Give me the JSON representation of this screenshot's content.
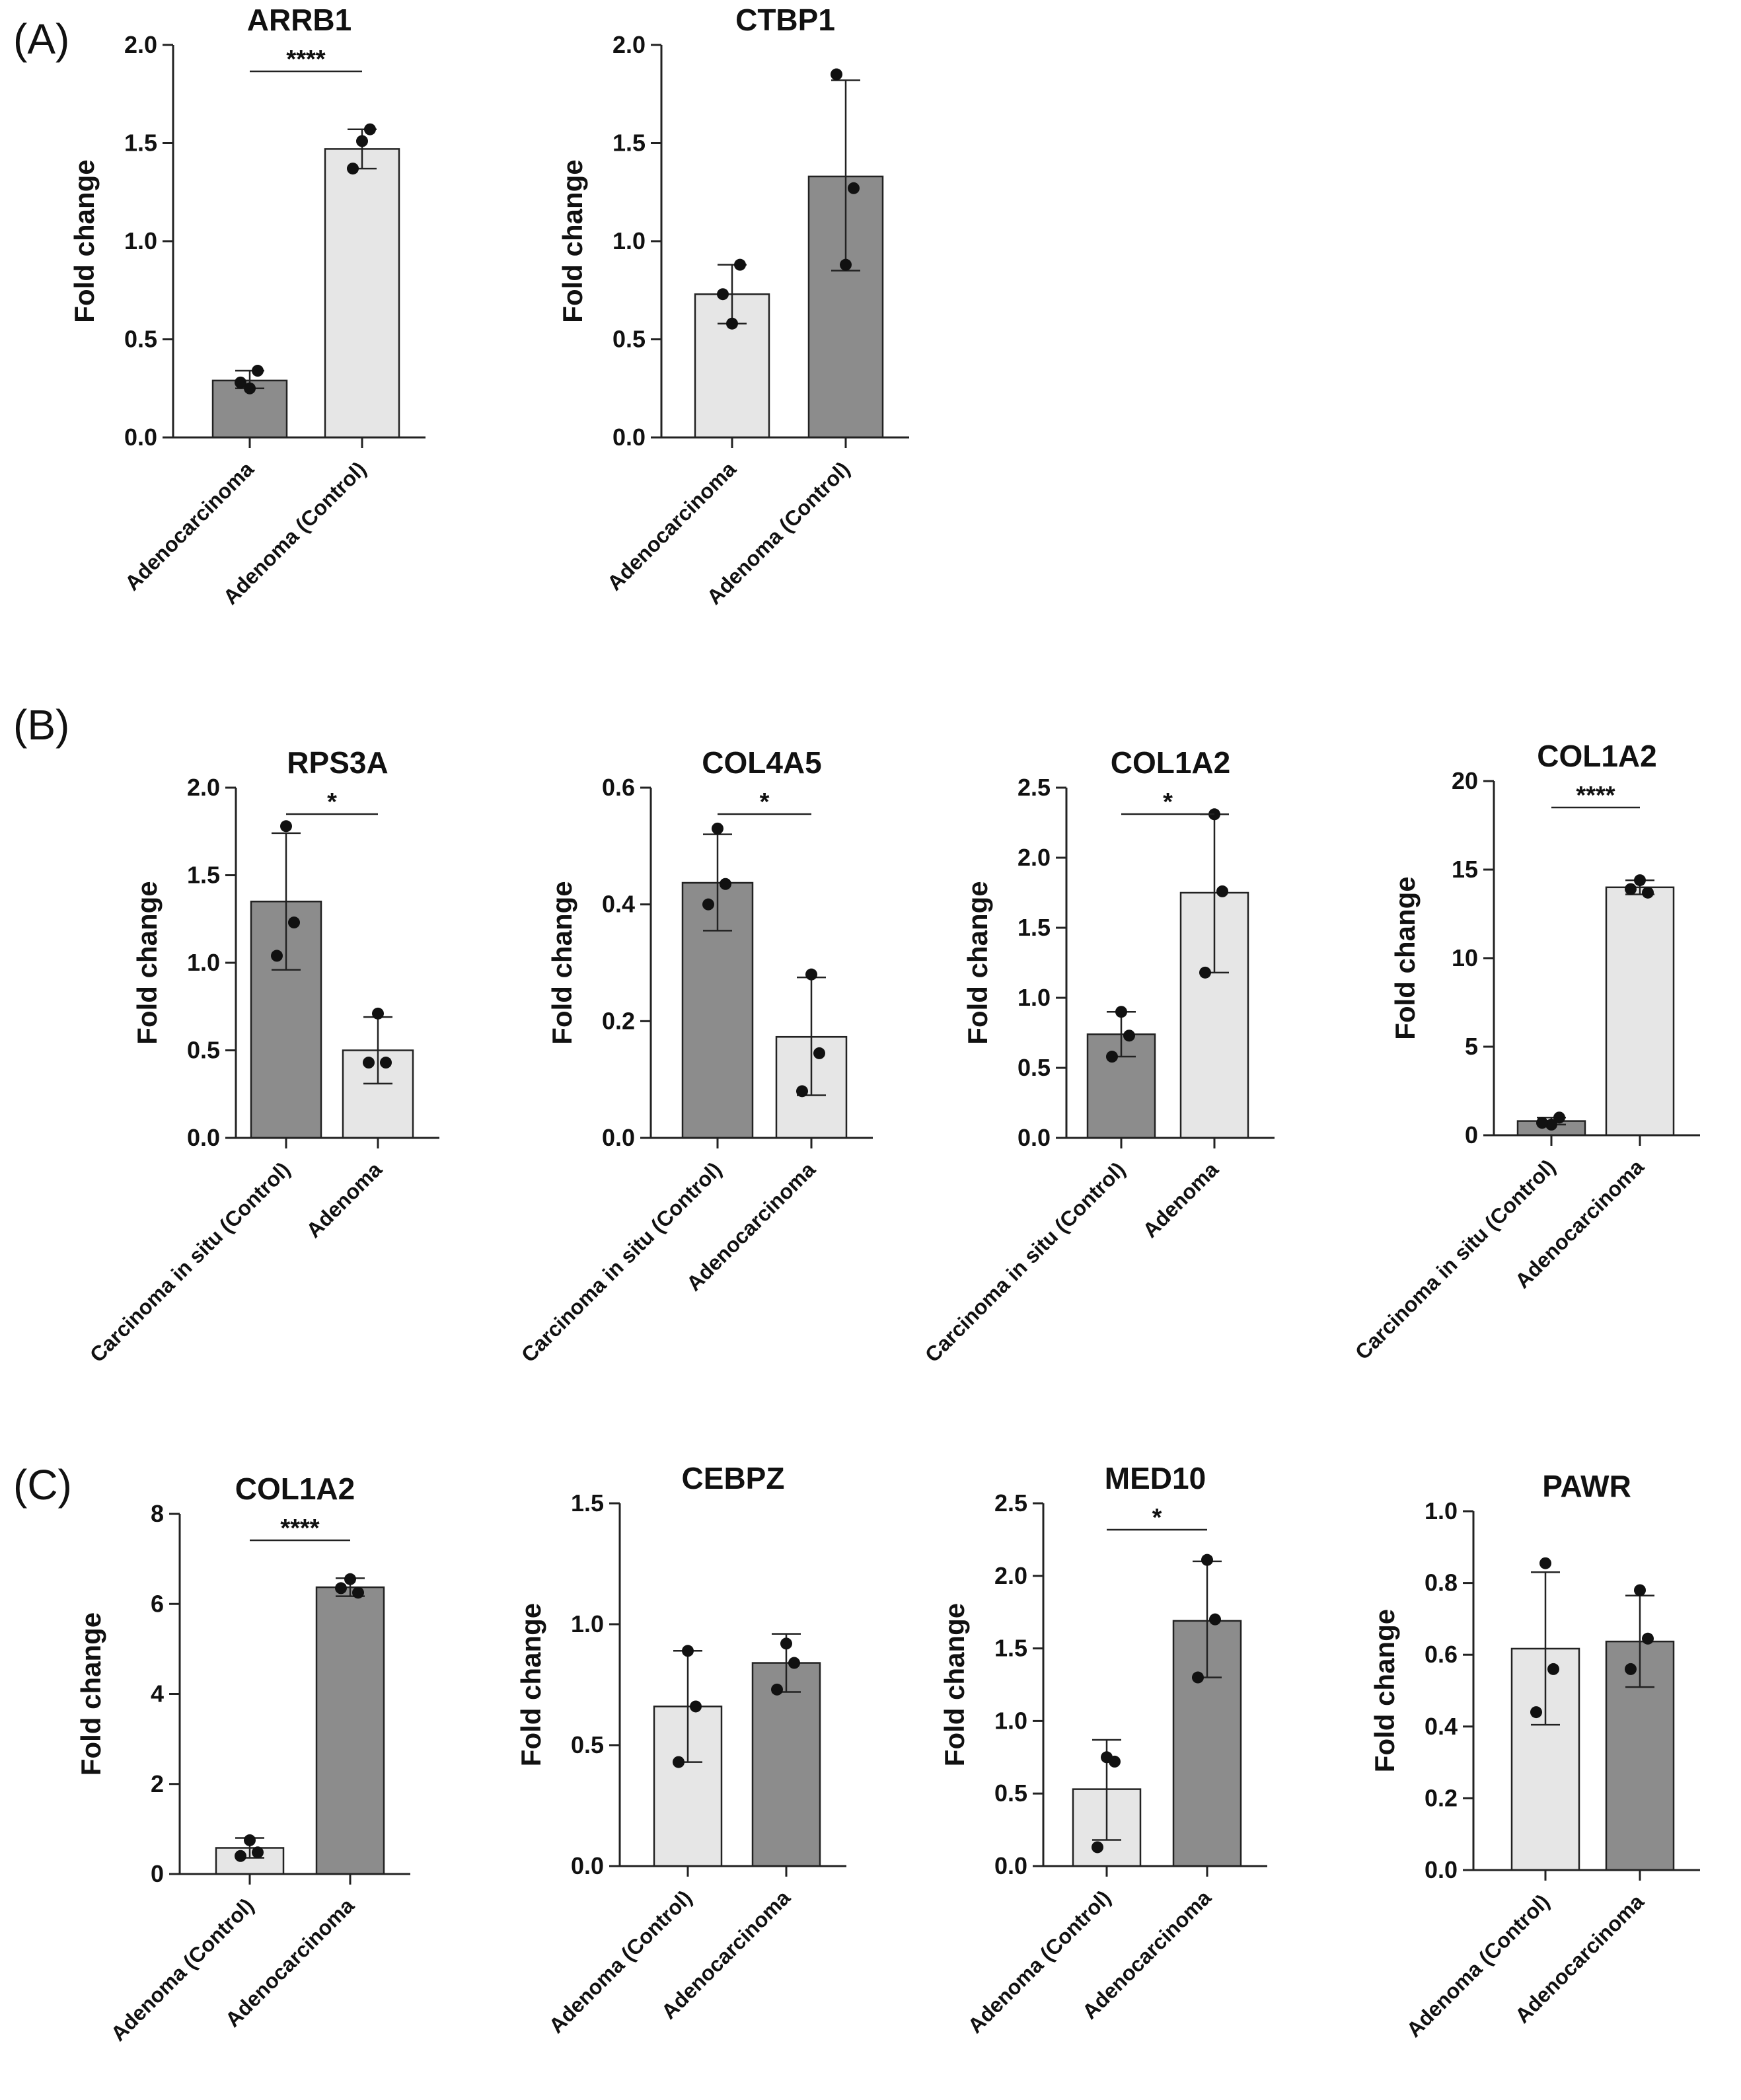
{
  "panel_labels": [
    "(A)",
    "(B)",
    "(C)"
  ],
  "chart_data": [
    {
      "type": "bar",
      "panel": "A",
      "title": "ARRB1",
      "ylabel": "Fold change",
      "ylim": [
        0,
        2.0
      ],
      "yticks": [
        "0.0",
        "0.5",
        "1.0",
        "1.5",
        "2.0"
      ],
      "categories": [
        "Adenocarcinoma",
        "Adenoma (Control)"
      ],
      "values": [
        0.29,
        1.47
      ],
      "err": [
        [
          0.25,
          0.34
        ],
        [
          1.37,
          1.57
        ]
      ],
      "points": [
        [
          0.25,
          0.34,
          0.28
        ],
        [
          1.51,
          1.57,
          1.37
        ]
      ],
      "colors": [
        "#8c8c8c",
        "#e6e6e6"
      ],
      "sig": "****"
    },
    {
      "type": "bar",
      "panel": "A",
      "title": "CTBP1",
      "ylabel": "Fold change",
      "ylim": [
        0,
        2.0
      ],
      "yticks": [
        "0.0",
        "0.5",
        "1.0",
        "1.5",
        "2.0"
      ],
      "categories": [
        "Adenocarcinoma",
        "Adenoma (Control)"
      ],
      "values": [
        0.73,
        1.33
      ],
      "err": [
        [
          0.58,
          0.88
        ],
        [
          0.85,
          1.82
        ]
      ],
      "points": [
        [
          0.58,
          0.88,
          0.73
        ],
        [
          0.88,
          1.27,
          1.85
        ]
      ],
      "colors": [
        "#e6e6e6",
        "#8c8c8c"
      ],
      "sig": ""
    },
    {
      "type": "bar",
      "panel": "B",
      "title": "RPS3A",
      "ylabel": "Fold change",
      "ylim": [
        0,
        2.0
      ],
      "yticks": [
        "0.0",
        "0.5",
        "1.0",
        "1.5",
        "2.0"
      ],
      "categories": [
        "Carcinoma in situ (Control)",
        "Adenoma"
      ],
      "values": [
        1.35,
        0.5
      ],
      "err": [
        [
          0.96,
          1.74
        ],
        [
          0.31,
          0.69
        ]
      ],
      "points": [
        [
          1.78,
          1.23,
          1.04
        ],
        [
          0.71,
          0.43,
          0.43
        ]
      ],
      "colors": [
        "#8c8c8c",
        "#e6e6e6"
      ],
      "sig": "*"
    },
    {
      "type": "bar",
      "panel": "B",
      "title": "COL4A5",
      "ylabel": "Fold change",
      "ylim": [
        0,
        0.6
      ],
      "yticks": [
        "0.0",
        "0.2",
        "0.4",
        "0.6"
      ],
      "categories": [
        "Carcinoma in situ (Control)",
        "Adenocarcinoma"
      ],
      "values": [
        0.437,
        0.173
      ],
      "err": [
        [
          0.355,
          0.52
        ],
        [
          0.073,
          0.275
        ]
      ],
      "points": [
        [
          0.53,
          0.435,
          0.4
        ],
        [
          0.28,
          0.145,
          0.08
        ]
      ],
      "colors": [
        "#8c8c8c",
        "#e6e6e6"
      ],
      "sig": "*"
    },
    {
      "type": "bar",
      "panel": "B",
      "title": "COL1A2",
      "ylabel": "Fold change",
      "ylim": [
        0,
        2.5
      ],
      "yticks": [
        "0.0",
        "0.5",
        "1.0",
        "1.5",
        "2.0",
        "2.5"
      ],
      "categories": [
        "Carcinoma in situ (Control)",
        "Adenoma"
      ],
      "values": [
        0.74,
        1.75
      ],
      "err": [
        [
          0.58,
          0.9
        ],
        [
          1.18,
          2.31
        ]
      ],
      "points": [
        [
          0.9,
          0.73,
          0.58
        ],
        [
          2.31,
          1.76,
          1.18
        ]
      ],
      "colors": [
        "#8c8c8c",
        "#e6e6e6"
      ],
      "sig": "*"
    },
    {
      "type": "bar",
      "panel": "B",
      "title": "COL1A2",
      "ylabel": "Fold change",
      "ylim": [
        0,
        20
      ],
      "yticks": [
        "0",
        "5",
        "10",
        "15",
        "20"
      ],
      "categories": [
        "Carcinoma in situ (Control)",
        "Adenocarcinoma"
      ],
      "values": [
        0.8,
        14.0
      ],
      "err": [
        [
          0.6,
          1.0
        ],
        [
          13.6,
          14.4
        ]
      ],
      "points": [
        [
          0.6,
          1.0,
          0.7
        ],
        [
          14.4,
          13.7,
          13.9
        ]
      ],
      "colors": [
        "#8c8c8c",
        "#e6e6e6"
      ],
      "sig": "****"
    },
    {
      "type": "bar",
      "panel": "C",
      "title": "COL1A2",
      "ylabel": "Fold change",
      "ylim": [
        0,
        8
      ],
      "yticks": [
        "0",
        "2",
        "4",
        "6",
        "8"
      ],
      "categories": [
        "Adenoma (Control)",
        "Adenocarcinoma"
      ],
      "values": [
        0.58,
        6.37
      ],
      "err": [
        [
          0.36,
          0.8
        ],
        [
          6.17,
          6.57
        ]
      ],
      "points": [
        [
          0.75,
          0.48,
          0.4
        ],
        [
          6.55,
          6.25,
          6.35
        ]
      ],
      "colors": [
        "#e6e6e6",
        "#8c8c8c"
      ],
      "sig": "****"
    },
    {
      "type": "bar",
      "panel": "C",
      "title": "CEBPZ",
      "ylabel": "Fold change",
      "ylim": [
        0,
        1.5
      ],
      "yticks": [
        "0.0",
        "0.5",
        "1.0",
        "1.5"
      ],
      "categories": [
        "Adenoma (Control)",
        "Adenocarcinoma"
      ],
      "values": [
        0.66,
        0.84
      ],
      "err": [
        [
          0.43,
          0.89
        ],
        [
          0.72,
          0.96
        ]
      ],
      "points": [
        [
          0.89,
          0.66,
          0.43
        ],
        [
          0.92,
          0.84,
          0.73
        ]
      ],
      "colors": [
        "#e6e6e6",
        "#8c8c8c"
      ],
      "sig": ""
    },
    {
      "type": "bar",
      "panel": "C",
      "title": "MED10",
      "ylabel": "Fold change",
      "ylim": [
        0,
        2.5
      ],
      "yticks": [
        "0.0",
        "0.5",
        "1.0",
        "1.5",
        "2.0",
        "2.5"
      ],
      "categories": [
        "Adenoma (Control)",
        "Adenocarcinoma"
      ],
      "values": [
        0.53,
        1.69
      ],
      "err": [
        [
          0.18,
          0.87
        ],
        [
          1.3,
          2.1
        ]
      ],
      "points": [
        [
          0.75,
          0.72,
          0.13
        ],
        [
          2.11,
          1.7,
          1.3
        ]
      ],
      "colors": [
        "#e6e6e6",
        "#8c8c8c"
      ],
      "sig": "*"
    },
    {
      "type": "bar",
      "panel": "C",
      "title": "PAWR",
      "ylabel": "Fold change",
      "ylim": [
        0,
        1.0
      ],
      "yticks": [
        "0.0",
        "0.2",
        "0.4",
        "0.6",
        "0.8",
        "1.0"
      ],
      "categories": [
        "Adenoma (Control)",
        "Adenocarcinoma"
      ],
      "values": [
        0.617,
        0.637
      ],
      "err": [
        [
          0.405,
          0.83
        ],
        [
          0.51,
          0.765
        ]
      ],
      "points": [
        [
          0.855,
          0.56,
          0.44
        ],
        [
          0.78,
          0.645,
          0.56
        ]
      ],
      "colors": [
        "#e6e6e6",
        "#8c8c8c"
      ],
      "sig": ""
    }
  ]
}
